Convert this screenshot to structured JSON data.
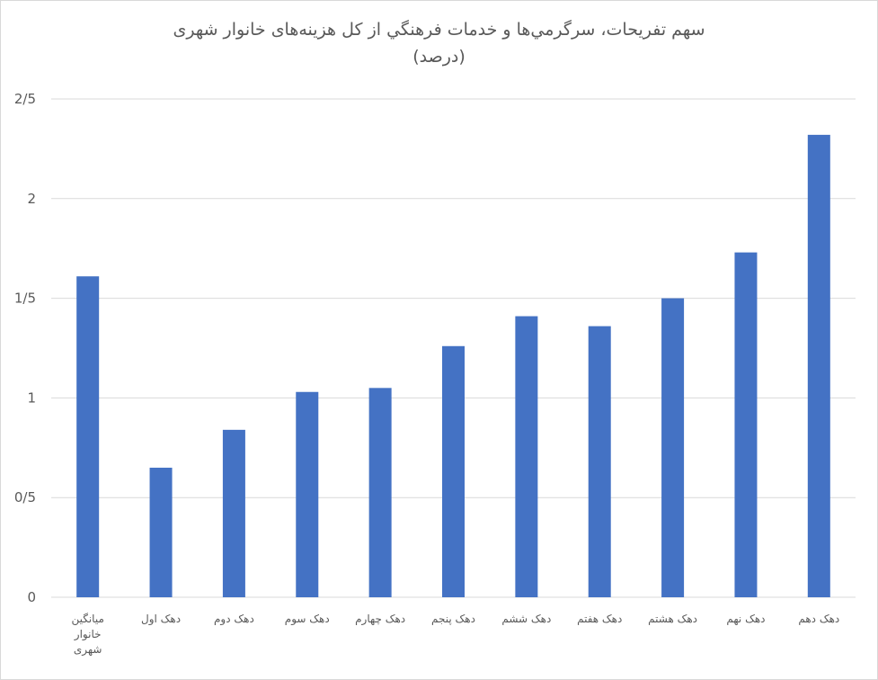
{
  "chart_data": {
    "type": "bar",
    "title": "سهم تفريحات، سرگرمي‌ها و خدمات فرهنگي از کل هزینه‌های خانوار شهری",
    "subtitle": "(درصد)",
    "categories": [
      "ميانگين خانوار شهری",
      "دهک اول",
      "دهک دوم",
      "دهک سوم",
      "دهک چهارم",
      "دهک پنجم",
      "دهک ششم",
      "دهک هفتم",
      "دهک هشتم",
      "دهک نهم",
      "دهک دهم"
    ],
    "values": [
      1.61,
      0.65,
      0.84,
      1.03,
      1.05,
      1.26,
      1.41,
      1.36,
      1.5,
      1.73,
      2.32
    ],
    "ylim": [
      0,
      2.5
    ],
    "ytick_labels": [
      "0",
      "0/5",
      "1",
      "1/5",
      "2",
      "2/5"
    ],
    "grid": true,
    "bar_color": "#4472c4",
    "xlabel": "",
    "ylabel": ""
  }
}
